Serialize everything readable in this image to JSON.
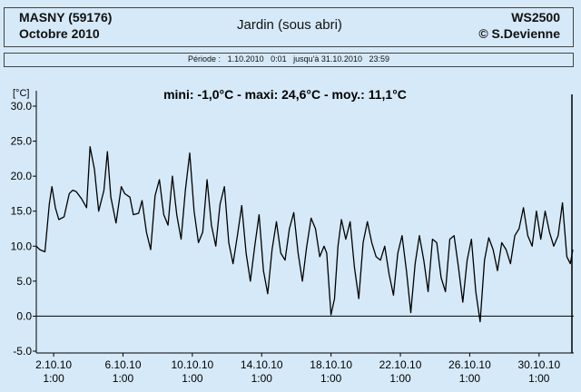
{
  "header": {
    "site": "MASNY (59176)",
    "month": "Octobre  2010",
    "title": "Jardin (sous abri)",
    "station": "WS2500",
    "copyright": "© S.Devienne"
  },
  "period": {
    "label": "Période :",
    "start": "1.10.2010   0:01",
    "until": "jusqu'à",
    "end": "31.10.2010   23:59"
  },
  "chart_data": {
    "type": "line",
    "unit_label": "[°C]",
    "summary": "mini: -1,0°C - maxi: 24,6°C - moy.: 11,1°C",
    "ylim": [
      -5,
      30
    ],
    "yticks": [
      30,
      25,
      20,
      15,
      10,
      5,
      0,
      -5
    ],
    "ytick_labels": [
      "30.0",
      "25.0",
      "20.0",
      "15.0",
      "10.0",
      "5.0",
      "0.0",
      "-5.0"
    ],
    "xlim_days": [
      1,
      32
    ],
    "xticks": [
      {
        "day": 2,
        "date": "2.10.10",
        "time": "1:00"
      },
      {
        "day": 6,
        "date": "6.10.10",
        "time": "1:00"
      },
      {
        "day": 10,
        "date": "10.10.10",
        "time": "1:00"
      },
      {
        "day": 14,
        "date": "14.10.10",
        "time": "1:00"
      },
      {
        "day": 18,
        "date": "18.10.10",
        "time": "1:00"
      },
      {
        "day": 22,
        "date": "22.10.10",
        "time": "1:00"
      },
      {
        "day": 26,
        "date": "26.10.10",
        "time": "1:00"
      },
      {
        "day": 30,
        "date": "30.10.10",
        "time": "1:00"
      }
    ],
    "series": [
      {
        "color": "#000000",
        "points": [
          [
            1.0,
            10
          ],
          [
            1.2,
            9.5
          ],
          [
            1.5,
            9.2
          ],
          [
            1.75,
            16
          ],
          [
            1.9,
            18.5
          ],
          [
            2.1,
            15.5
          ],
          [
            2.3,
            13.8
          ],
          [
            2.6,
            14.2
          ],
          [
            2.9,
            17.5
          ],
          [
            3.1,
            18
          ],
          [
            3.3,
            17.8
          ],
          [
            3.6,
            16.8
          ],
          [
            3.9,
            15.5
          ],
          [
            4.1,
            24.2
          ],
          [
            4.35,
            21
          ],
          [
            4.6,
            15
          ],
          [
            4.9,
            18
          ],
          [
            5.1,
            23.5
          ],
          [
            5.3,
            17
          ],
          [
            5.6,
            13.3
          ],
          [
            5.9,
            18.5
          ],
          [
            6.1,
            17.5
          ],
          [
            6.4,
            17
          ],
          [
            6.6,
            14.5
          ],
          [
            6.9,
            14.7
          ],
          [
            7.1,
            16.5
          ],
          [
            7.35,
            12
          ],
          [
            7.6,
            9.5
          ],
          [
            7.85,
            17.2
          ],
          [
            8.1,
            19.5
          ],
          [
            8.35,
            14.5
          ],
          [
            8.6,
            13
          ],
          [
            8.85,
            20
          ],
          [
            9.1,
            14.5
          ],
          [
            9.35,
            11
          ],
          [
            9.6,
            18
          ],
          [
            9.85,
            23.3
          ],
          [
            10.1,
            15
          ],
          [
            10.35,
            10.5
          ],
          [
            10.6,
            12
          ],
          [
            10.85,
            19.5
          ],
          [
            11.1,
            13
          ],
          [
            11.35,
            10
          ],
          [
            11.6,
            16
          ],
          [
            11.85,
            18.5
          ],
          [
            12.1,
            10.5
          ],
          [
            12.35,
            7.5
          ],
          [
            12.6,
            11.5
          ],
          [
            12.85,
            15.8
          ],
          [
            13.1,
            9
          ],
          [
            13.35,
            5
          ],
          [
            13.6,
            10
          ],
          [
            13.85,
            14.5
          ],
          [
            14.1,
            6.5
          ],
          [
            14.35,
            3.2
          ],
          [
            14.6,
            9.5
          ],
          [
            14.85,
            13.5
          ],
          [
            15.1,
            9
          ],
          [
            15.35,
            8
          ],
          [
            15.6,
            12.5
          ],
          [
            15.85,
            14.8
          ],
          [
            16.1,
            9
          ],
          [
            16.35,
            5
          ],
          [
            16.6,
            10
          ],
          [
            16.85,
            14
          ],
          [
            17.1,
            12.5
          ],
          [
            17.35,
            8.5
          ],
          [
            17.6,
            10
          ],
          [
            17.75,
            9
          ],
          [
            18.0,
            0.2
          ],
          [
            18.2,
            2.5
          ],
          [
            18.4,
            10
          ],
          [
            18.6,
            13.8
          ],
          [
            18.85,
            11
          ],
          [
            19.1,
            13.5
          ],
          [
            19.35,
            7
          ],
          [
            19.6,
            2.5
          ],
          [
            19.85,
            10.5
          ],
          [
            20.1,
            13.5
          ],
          [
            20.35,
            10.5
          ],
          [
            20.6,
            8.5
          ],
          [
            20.85,
            8
          ],
          [
            21.1,
            10
          ],
          [
            21.35,
            6
          ],
          [
            21.6,
            3
          ],
          [
            21.85,
            9
          ],
          [
            22.1,
            11.5
          ],
          [
            22.35,
            6.5
          ],
          [
            22.6,
            0.5
          ],
          [
            22.85,
            7.5
          ],
          [
            23.1,
            11.5
          ],
          [
            23.35,
            8
          ],
          [
            23.6,
            3.5
          ],
          [
            23.85,
            11
          ],
          [
            24.1,
            10.5
          ],
          [
            24.35,
            5.5
          ],
          [
            24.6,
            3.5
          ],
          [
            24.85,
            11
          ],
          [
            25.1,
            11.5
          ],
          [
            25.35,
            7
          ],
          [
            25.6,
            2
          ],
          [
            25.85,
            8
          ],
          [
            26.1,
            11
          ],
          [
            26.35,
            3.5
          ],
          [
            26.6,
            -0.8
          ],
          [
            26.85,
            8
          ],
          [
            27.1,
            11.2
          ],
          [
            27.35,
            9.5
          ],
          [
            27.6,
            6.5
          ],
          [
            27.85,
            10.5
          ],
          [
            28.1,
            9.5
          ],
          [
            28.35,
            7.5
          ],
          [
            28.6,
            11.5
          ],
          [
            28.85,
            12.5
          ],
          [
            29.1,
            15.5
          ],
          [
            29.35,
            11.5
          ],
          [
            29.6,
            10
          ],
          [
            29.85,
            15
          ],
          [
            30.1,
            11
          ],
          [
            30.35,
            15
          ],
          [
            30.6,
            12
          ],
          [
            30.85,
            10
          ],
          [
            31.1,
            11.5
          ],
          [
            31.35,
            16.2
          ],
          [
            31.6,
            8.5
          ],
          [
            31.8,
            7.5
          ],
          [
            31.95,
            9.5
          ]
        ]
      }
    ]
  }
}
